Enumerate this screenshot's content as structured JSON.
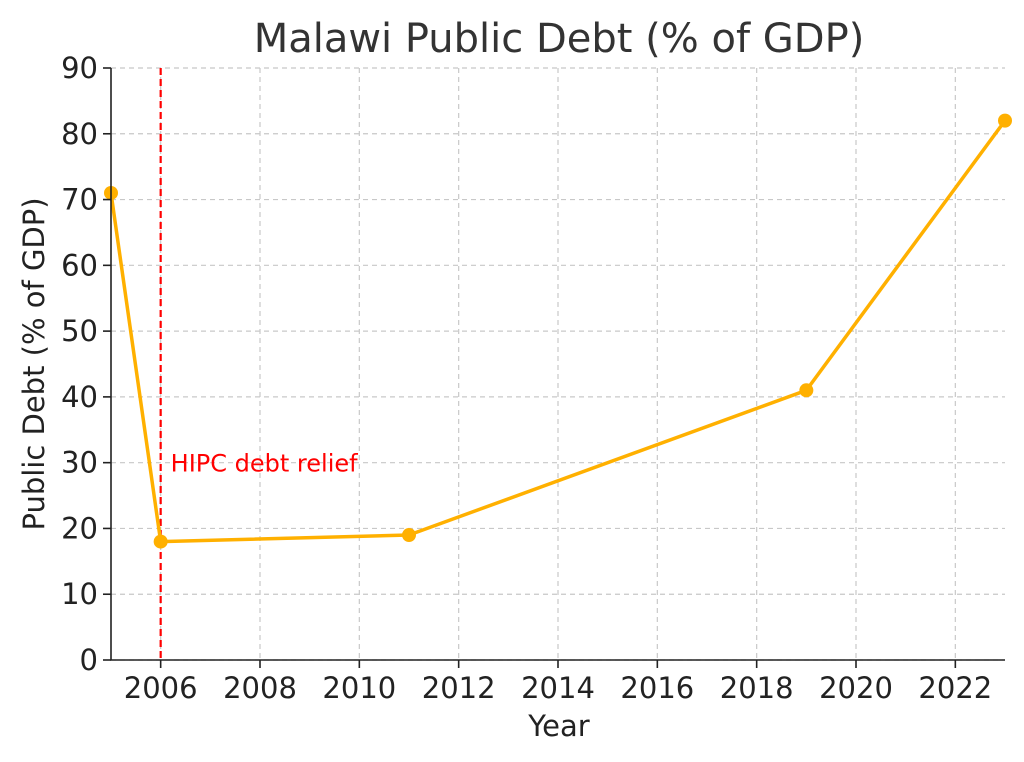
{
  "chart_data": {
    "type": "line",
    "title": "Malawi Public Debt (% of GDP)",
    "xlabel": "Year",
    "ylabel": "Public Debt (% of GDP)",
    "xlim": [
      2005,
      2023
    ],
    "ylim": [
      0,
      90
    ],
    "x_ticks": [
      2006,
      2008,
      2010,
      2012,
      2014,
      2016,
      2018,
      2020,
      2022
    ],
    "y_ticks": [
      0,
      10,
      20,
      30,
      40,
      50,
      60,
      70,
      80,
      90
    ],
    "grid": true,
    "series": [
      {
        "color": "#FFB000",
        "x": [
          2005,
          2006,
          2011,
          2019,
          2023
        ],
        "y": [
          71,
          18,
          19,
          41,
          82
        ]
      }
    ],
    "annotations": [
      {
        "type": "vline",
        "x": 2006,
        "color": "#FF0000",
        "style": "dashed",
        "label": "HIPC debt relief",
        "label_y": 30
      }
    ]
  }
}
